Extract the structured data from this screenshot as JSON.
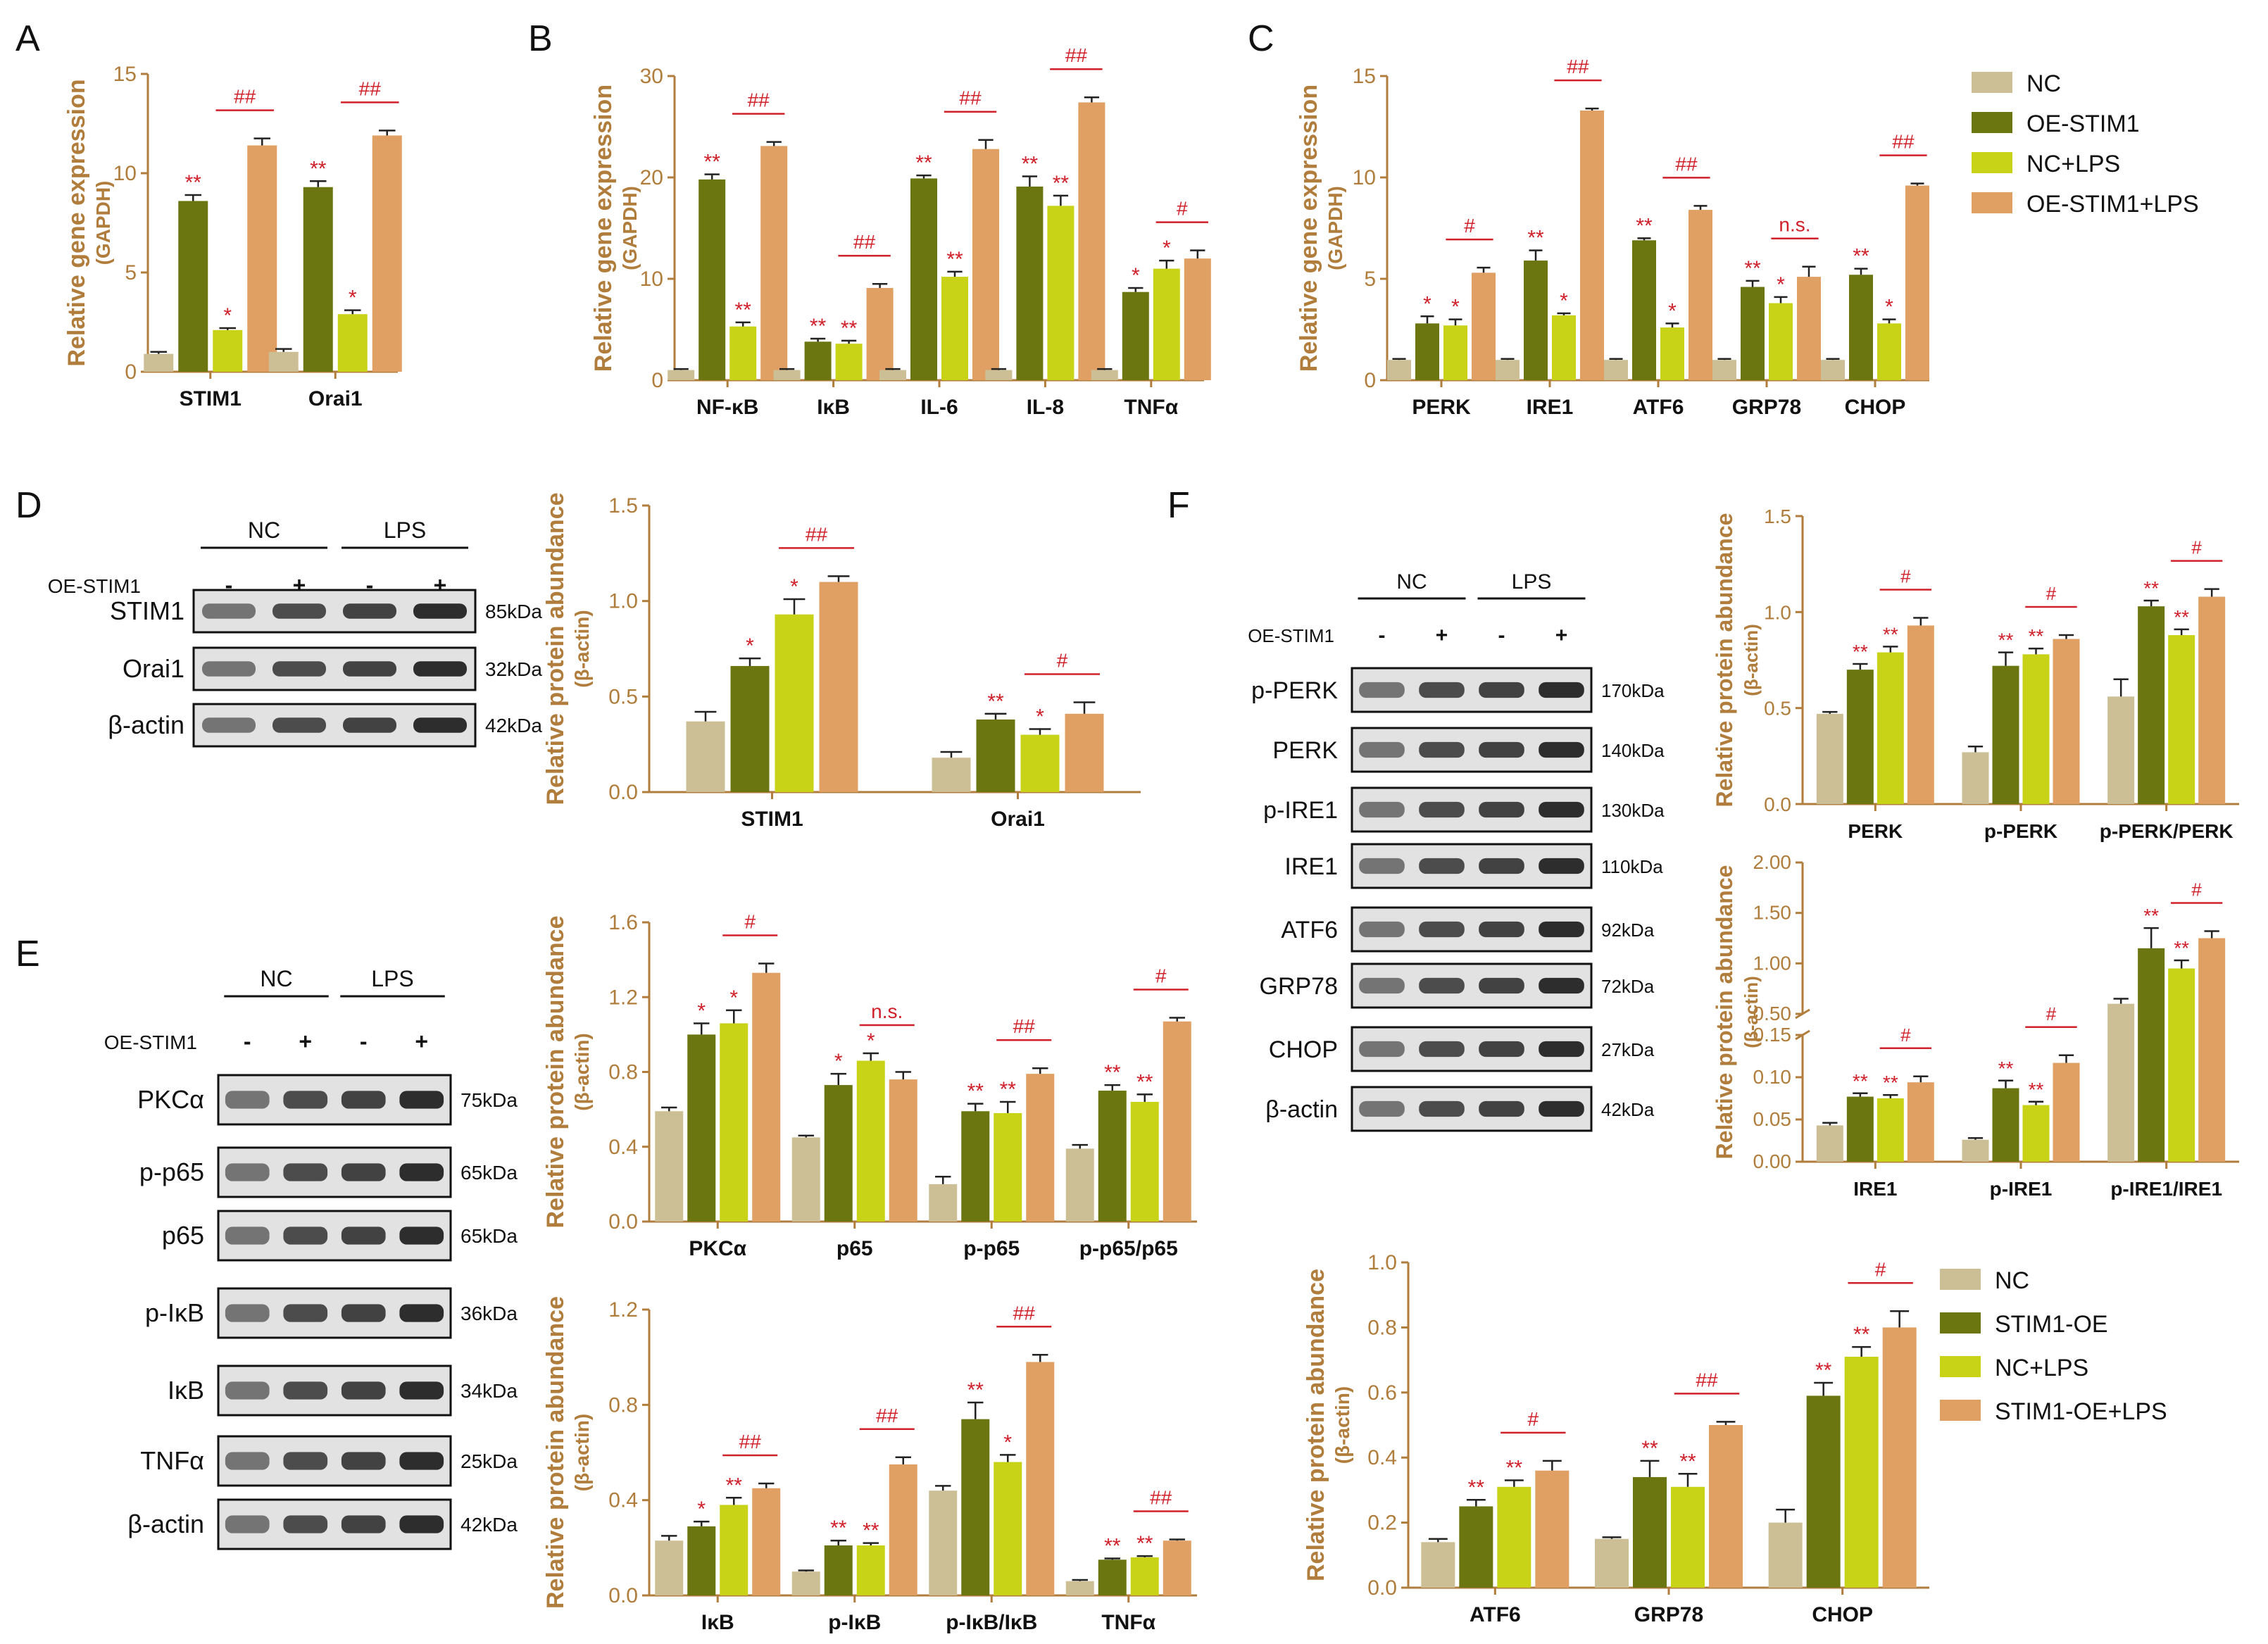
{
  "figure": {
    "colors": {
      "nc": "#cdbf95",
      "oe": "#6b7610",
      "nclps": "#c8d318",
      "oelps": "#e0a063",
      "axis": "#b07d3c",
      "sig": "#d0202a",
      "text": "#111111"
    },
    "legend1": {
      "labels": [
        "NC",
        "OE-STIM1",
        "NC+LPS",
        "OE-STIM1+LPS"
      ]
    },
    "legend2": {
      "labels": [
        "NC",
        "STIM1-OE",
        "NC+LPS",
        "STIM1-OE+LPS"
      ]
    }
  },
  "chart_data": [
    {
      "id": "A",
      "type": "bar",
      "panel": "A",
      "ylabel": "Relative gene expression",
      "ysub": "(GAPDH)",
      "ylim": [
        0,
        15
      ],
      "ticks": [
        0,
        5,
        10,
        15
      ],
      "categories": [
        "STIM1",
        "Orai1"
      ],
      "values": [
        [
          0.9,
          8.6,
          2.1,
          11.4
        ],
        [
          1.0,
          9.3,
          2.9,
          11.9
        ]
      ],
      "errors": [
        [
          0.1,
          0.3,
          0.1,
          0.35
        ],
        [
          0.15,
          0.3,
          0.2,
          0.25
        ]
      ],
      "sig": [
        [
          "",
          "**",
          "*",
          ""
        ],
        [
          "",
          "**",
          "*",
          ""
        ]
      ],
      "pair": [
        "##",
        "##"
      ]
    },
    {
      "id": "B",
      "type": "bar",
      "panel": "B",
      "ylabel": "Relative gene expression",
      "ysub": "(GAPDH)",
      "ylim": [
        0,
        30
      ],
      "ticks": [
        0,
        10,
        20,
        30
      ],
      "categories": [
        "NF-κB",
        "IκB",
        "IL-6",
        "IL-8",
        "TNFα"
      ],
      "values": [
        [
          1,
          19.8,
          5.3,
          23.1
        ],
        [
          1,
          3.8,
          3.6,
          9.1
        ],
        [
          1,
          19.9,
          10.2,
          22.8
        ],
        [
          1,
          19.1,
          17.2,
          27.4
        ],
        [
          1,
          8.7,
          11,
          12
        ]
      ],
      "errors": [
        [
          0.1,
          0.5,
          0.4,
          0.4
        ],
        [
          0.1,
          0.3,
          0.3,
          0.4
        ],
        [
          0.1,
          0.3,
          0.5,
          0.9
        ],
        [
          0.1,
          1.0,
          1.0,
          0.5
        ],
        [
          0.1,
          0.4,
          0.8,
          0.8
        ]
      ],
      "sig": [
        [
          "",
          "**",
          "**",
          ""
        ],
        [
          "",
          "**",
          "**",
          ""
        ],
        [
          "",
          "**",
          "**",
          ""
        ],
        [
          "",
          "**",
          "**",
          ""
        ],
        [
          "",
          "*",
          "*",
          ""
        ]
      ],
      "pair": [
        "##",
        "##",
        "##",
        "##",
        "#"
      ]
    },
    {
      "id": "C",
      "type": "bar",
      "panel": "C",
      "ylabel": "Relative gene expression",
      "ysub": "(GAPDH)",
      "ylim": [
        0,
        15
      ],
      "ticks": [
        0,
        5,
        10,
        15
      ],
      "categories": [
        "PERK",
        "IRE1",
        "ATF6",
        "GRP78",
        "CHOP"
      ],
      "values": [
        [
          1,
          2.8,
          2.7,
          5.3
        ],
        [
          1,
          5.9,
          3.2,
          13.3
        ],
        [
          1,
          6.9,
          2.6,
          8.4
        ],
        [
          1,
          4.6,
          3.8,
          5.1
        ],
        [
          1,
          5.2,
          2.8,
          9.6
        ]
      ],
      "errors": [
        [
          0.05,
          0.35,
          0.3,
          0.25
        ],
        [
          0.05,
          0.5,
          0.1,
          0.1
        ],
        [
          0.05,
          0.1,
          0.2,
          0.2
        ],
        [
          0.05,
          0.3,
          0.3,
          0.5
        ],
        [
          0.05,
          0.3,
          0.2,
          0.1
        ]
      ],
      "sig": [
        [
          "",
          "*",
          "*",
          ""
        ],
        [
          "",
          "**",
          "*",
          ""
        ],
        [
          "",
          "**",
          "*",
          ""
        ],
        [
          "",
          "**",
          "*",
          ""
        ],
        [
          "",
          "**",
          "*",
          ""
        ]
      ],
      "pair": [
        "#",
        "##",
        "##",
        "n.s.",
        "##"
      ]
    },
    {
      "id": "D",
      "type": "bar",
      "panel": "",
      "ylabel": "Relative protein abundance",
      "ysub": "(β-actin)",
      "ylim": [
        0,
        1.5
      ],
      "ticks": [
        0.0,
        0.5,
        1.0,
        1.5
      ],
      "categories": [
        "STIM1",
        "Orai1"
      ],
      "values": [
        [
          0.37,
          0.66,
          0.93,
          1.1
        ],
        [
          0.18,
          0.38,
          0.3,
          0.41
        ]
      ],
      "errors": [
        [
          0.05,
          0.04,
          0.08,
          0.03
        ],
        [
          0.03,
          0.03,
          0.03,
          0.06
        ]
      ],
      "sig": [
        [
          "",
          "*",
          "*",
          ""
        ],
        [
          "",
          "**",
          "*",
          ""
        ]
      ],
      "pair": [
        "##",
        "#"
      ]
    },
    {
      "id": "E1",
      "type": "bar",
      "panel": "",
      "ylabel": "Relative protein abundance",
      "ysub": "(β-actin)",
      "ylim": [
        0,
        1.6
      ],
      "ticks": [
        0.0,
        0.4,
        0.8,
        1.2,
        1.6
      ],
      "categories": [
        "PKCα",
        "p65",
        "p-p65",
        "p-p65/p65"
      ],
      "values": [
        [
          0.59,
          1.0,
          1.06,
          1.33
        ],
        [
          0.45,
          0.73,
          0.86,
          0.76
        ],
        [
          0.2,
          0.59,
          0.58,
          0.79
        ],
        [
          0.39,
          0.7,
          0.64,
          1.07
        ]
      ],
      "errors": [
        [
          0.02,
          0.06,
          0.07,
          0.05
        ],
        [
          0.01,
          0.06,
          0.04,
          0.04
        ],
        [
          0.04,
          0.04,
          0.06,
          0.03
        ],
        [
          0.02,
          0.03,
          0.04,
          0.02
        ]
      ],
      "sig": [
        [
          "",
          "*",
          "*",
          ""
        ],
        [
          "",
          "*",
          "*",
          ""
        ],
        [
          "",
          "**",
          "**",
          ""
        ],
        [
          "",
          "**",
          "**",
          ""
        ]
      ],
      "pair": [
        "#",
        "n.s.",
        "##",
        "#"
      ]
    },
    {
      "id": "E2",
      "type": "bar",
      "panel": "",
      "ylabel": "Relative protein abundance",
      "ysub": "(β-actin)",
      "ylim": [
        0,
        1.2
      ],
      "ticks": [
        0.0,
        0.4,
        0.8,
        1.2
      ],
      "categories": [
        "IκB",
        "p-IκB",
        "p-IκB/IκB",
        "TNFα"
      ],
      "values": [
        [
          0.23,
          0.29,
          0.38,
          0.45
        ],
        [
          0.1,
          0.21,
          0.21,
          0.55
        ],
        [
          0.44,
          0.74,
          0.56,
          0.98
        ],
        [
          0.06,
          0.15,
          0.16,
          0.23
        ]
      ],
      "errors": [
        [
          0.02,
          0.02,
          0.03,
          0.02
        ],
        [
          0.005,
          0.02,
          0.01,
          0.03
        ],
        [
          0.02,
          0.07,
          0.03,
          0.03
        ],
        [
          0.005,
          0.005,
          0.005,
          0.005
        ]
      ],
      "sig": [
        [
          "",
          "*",
          "**",
          ""
        ],
        [
          "",
          "**",
          "**",
          ""
        ],
        [
          "",
          "**",
          "*",
          ""
        ],
        [
          "",
          "**",
          "**",
          ""
        ]
      ],
      "pair": [
        "##",
        "##",
        "##",
        "##"
      ]
    },
    {
      "id": "F1",
      "type": "bar",
      "panel": "",
      "ylabel": "Relative protein abundance",
      "ysub": "(β-actin)",
      "ylim": [
        0,
        1.5
      ],
      "ticks": [
        0.0,
        0.5,
        1.0,
        1.5
      ],
      "categories": [
        "PERK",
        "p-PERK",
        "p-PERK/PERK"
      ],
      "values": [
        [
          0.47,
          0.7,
          0.79,
          0.93
        ],
        [
          0.27,
          0.72,
          0.78,
          0.86
        ],
        [
          0.56,
          1.03,
          0.88,
          1.08
        ]
      ],
      "errors": [
        [
          0.01,
          0.03,
          0.03,
          0.04
        ],
        [
          0.03,
          0.07,
          0.03,
          0.02
        ],
        [
          0.09,
          0.03,
          0.03,
          0.04
        ]
      ],
      "sig": [
        [
          "",
          "**",
          "**",
          ""
        ],
        [
          "",
          "**",
          "**",
          ""
        ],
        [
          "",
          "**",
          "**",
          ""
        ]
      ],
      "pair": [
        "#",
        "#",
        "#"
      ]
    },
    {
      "id": "F2",
      "type": "bar",
      "panel": "",
      "ylabel": "Relative protein abundance",
      "ysub": "(β-actin)",
      "broken": true,
      "lower_ylim": [
        0,
        0.15
      ],
      "lower_ticks": [
        0.0,
        0.05,
        0.1,
        0.15
      ],
      "upper_ylim": [
        0.5,
        2.0
      ],
      "upper_ticks": [
        0.5,
        1.0,
        1.5,
        2.0
      ],
      "categories": [
        "IRE1",
        "p-IRE1",
        "p-IRE1/IRE1"
      ],
      "values": [
        [
          0.043,
          0.077,
          0.075,
          0.094
        ],
        [
          0.026,
          0.087,
          0.067,
          0.117
        ],
        [
          0.6,
          1.15,
          0.95,
          1.25
        ]
      ],
      "errors": [
        [
          0.003,
          0.004,
          0.004,
          0.007
        ],
        [
          0.002,
          0.009,
          0.004,
          0.009
        ],
        [
          0.05,
          0.2,
          0.08,
          0.07
        ]
      ],
      "sig": [
        [
          "",
          "**",
          "**",
          ""
        ],
        [
          "",
          "**",
          "**",
          ""
        ],
        [
          "",
          "**",
          "**",
          ""
        ]
      ],
      "pair": [
        "#",
        "#",
        "#"
      ]
    },
    {
      "id": "F3",
      "type": "bar",
      "panel": "",
      "ylabel": "Relative protein abundance",
      "ysub": "(β-actin)",
      "ylim": [
        0,
        1.0
      ],
      "ticks": [
        0.0,
        0.2,
        0.4,
        0.6,
        0.8,
        1.0
      ],
      "categories": [
        "ATF6",
        "GRP78",
        "CHOP"
      ],
      "values": [
        [
          0.14,
          0.25,
          0.31,
          0.36
        ],
        [
          0.15,
          0.34,
          0.31,
          0.5
        ],
        [
          0.2,
          0.59,
          0.71,
          0.8
        ]
      ],
      "errors": [
        [
          0.01,
          0.02,
          0.02,
          0.03
        ],
        [
          0.005,
          0.05,
          0.04,
          0.01
        ],
        [
          0.04,
          0.04,
          0.03,
          0.05
        ]
      ],
      "sig": [
        [
          "",
          "**",
          "**",
          ""
        ],
        [
          "",
          "**",
          "**",
          ""
        ],
        [
          "",
          "**",
          "**",
          ""
        ]
      ],
      "pair": [
        "#",
        "##",
        "#"
      ]
    }
  ],
  "blots": {
    "D": {
      "groups": [
        "NC",
        "LPS"
      ],
      "treatment": "OE-STIM1",
      "signs": [
        "-",
        "+",
        "-",
        "+"
      ],
      "rows": [
        {
          "label": "STIM1",
          "kda": "85kDa"
        },
        {
          "label": "Orai1",
          "kda": "32kDa"
        },
        {
          "label": "β-actin",
          "kda": "42kDa"
        }
      ]
    },
    "E": {
      "groups": [
        "NC",
        "LPS"
      ],
      "treatment": "OE-STIM1",
      "signs": [
        "-",
        "+",
        "-",
        "+"
      ],
      "rows": [
        {
          "label": "PKCα",
          "kda": "75kDa"
        },
        {
          "label": "p-p65",
          "kda": "65kDa"
        },
        {
          "label": "p65",
          "kda": "65kDa"
        },
        {
          "label": "p-IκB",
          "kda": "36kDa"
        },
        {
          "label": "IκB",
          "kda": "34kDa"
        },
        {
          "label": "TNFα",
          "kda": "25kDa"
        },
        {
          "label": "β-actin",
          "kda": "42kDa"
        }
      ]
    },
    "F": {
      "groups": [
        "NC",
        "LPS"
      ],
      "treatment": "OE-STIM1",
      "signs": [
        "-",
        "+",
        "-",
        "+"
      ],
      "rows": [
        {
          "label": "p-PERK",
          "kda": "170kDa"
        },
        {
          "label": "PERK",
          "kda": "140kDa"
        },
        {
          "label": "p-IRE1",
          "kda": "130kDa"
        },
        {
          "label": "IRE1",
          "kda": "110kDa"
        },
        {
          "label": "ATF6",
          "kda": "92kDa"
        },
        {
          "label": "GRP78",
          "kda": "72kDa"
        },
        {
          "label": "CHOP",
          "kda": "27kDa"
        },
        {
          "label": "β-actin",
          "kda": "42kDa"
        }
      ]
    }
  },
  "panel_letters": [
    "A",
    "B",
    "C",
    "D",
    "E",
    "F"
  ]
}
